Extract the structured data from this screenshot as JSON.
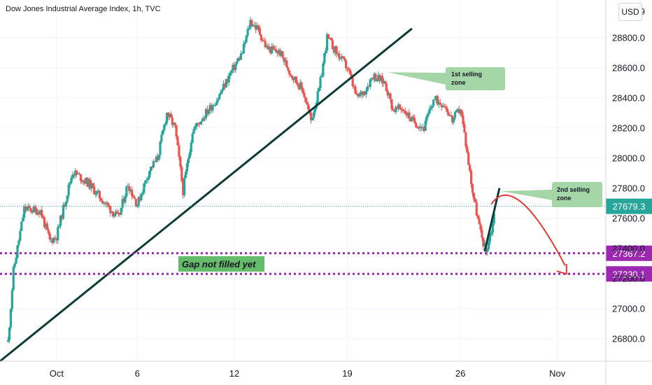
{
  "header": {
    "title": "Dow Jones Industrial Average Index, 1h, TVC",
    "currency_button": "USD"
  },
  "colors": {
    "up": "#26a69a",
    "down": "#ef5350",
    "trendline": "#0d3b36",
    "dotted": "#9c27b0",
    "zone_fill": "#a5d6a7",
    "current_tag": "#26a69a",
    "level_tag": "#9c27b0",
    "projection": "#e53935"
  },
  "chart_data": {
    "type": "candlestick",
    "title": "Dow Jones Industrial Average Index, 1h, TVC",
    "ylim": [
      26650,
      29050
    ],
    "y_ticks": [
      "28800.0",
      "28600.0",
      "28400.0",
      "28200.0",
      "28000.0",
      "27800.0",
      "27600.0",
      "27400.0",
      "27200.0",
      "27000.0",
      "26800.0"
    ],
    "y_top_partial_label": "29",
    "x_ticks": [
      "Oct",
      "6",
      "12",
      "19",
      "26",
      "Nov"
    ],
    "current_price": "27679.3",
    "levels": [
      {
        "value": 27367.2,
        "label": "27367.2"
      },
      {
        "value": 27230.1,
        "label": "27230.1"
      }
    ],
    "annotations": {
      "zone1": [
        "1st selling",
        "zone"
      ],
      "zone2": [
        "2nd selling",
        "zone"
      ],
      "gap": "Gap not filled yet"
    },
    "anchors": [
      [
        "2020-09-28 00:00",
        26780
      ],
      [
        "2020-09-28 08:00",
        27250
      ],
      [
        "2020-09-29 00:00",
        27660
      ],
      [
        "2020-09-30 00:00",
        27650
      ],
      [
        "2020-09-30 14:00",
        27450
      ],
      [
        "2020-10-01 00:00",
        27480
      ],
      [
        "2020-10-01 12:00",
        27700
      ],
      [
        "2020-10-02 00:00",
        27910
      ],
      [
        "2020-10-03 00:00",
        27830
      ],
      [
        "2020-10-04 00:00",
        27700
      ],
      [
        "2020-10-04 20:00",
        27600
      ],
      [
        "2020-10-05 10:00",
        27830
      ],
      [
        "2020-10-06 00:00",
        27690
      ],
      [
        "2020-10-06 18:00",
        27920
      ],
      [
        "2020-10-07 06:00",
        28000
      ],
      [
        "2020-10-07 20:00",
        28300
      ],
      [
        "2020-10-08 08:00",
        28200
      ],
      [
        "2020-10-08 20:00",
        27780
      ],
      [
        "2020-10-09 10:00",
        28180
      ],
      [
        "2020-10-10 06:00",
        28300
      ],
      [
        "2020-10-11 00:00",
        28400
      ],
      [
        "2020-10-11 18:00",
        28560
      ],
      [
        "2020-10-12 12:00",
        28700
      ],
      [
        "2020-10-13 00:00",
        28910
      ],
      [
        "2020-10-13 12:00",
        28850
      ],
      [
        "2020-10-14 00:00",
        28730
      ],
      [
        "2020-10-14 20:00",
        28700
      ],
      [
        "2020-10-15 12:00",
        28560
      ],
      [
        "2020-10-16 06:00",
        28450
      ],
      [
        "2020-10-16 18:00",
        28250
      ],
      [
        "2020-10-17 06:00",
        28450
      ],
      [
        "2020-10-17 18:00",
        28800
      ],
      [
        "2020-10-18 08:00",
        28700
      ],
      [
        "2020-10-19 00:00",
        28600
      ],
      [
        "2020-10-19 14:00",
        28400
      ],
      [
        "2020-10-20 02:00",
        28450
      ],
      [
        "2020-10-20 14:00",
        28550
      ],
      [
        "2020-10-21 08:00",
        28500
      ],
      [
        "2020-10-21 20:00",
        28320
      ],
      [
        "2020-10-22 10:00",
        28330
      ],
      [
        "2020-10-23 00:00",
        28250
      ],
      [
        "2020-10-23 18:00",
        28200
      ],
      [
        "2020-10-24 08:00",
        28390
      ],
      [
        "2020-10-25 00:00",
        28360
      ],
      [
        "2020-10-25 12:00",
        28250
      ],
      [
        "2020-10-26 00:00",
        28330
      ],
      [
        "2020-10-26 06:00",
        28160
      ],
      [
        "2020-10-26 18:00",
        27780
      ],
      [
        "2020-10-27 06:00",
        27500
      ],
      [
        "2020-10-27 14:00",
        27380
      ],
      [
        "2020-10-28 00:00",
        27560
      ],
      [
        "2020-10-28 02:00",
        27650
      ]
    ],
    "trendline": {
      "from": [
        "2020-09-27 12:00",
        26650
      ],
      "to": [
        "2020-10-23 00:00",
        28860
      ]
    },
    "zone1_pointer": [
      "2020-10-21 12:00",
      28570
    ],
    "zone2_pointer": [
      "2020-10-28 12:00",
      27780
    ],
    "projection_from": [
      "2020-10-28 04:00",
      27730
    ],
    "projection_to": [
      "2020-11-02 00:00",
      27230
    ]
  }
}
